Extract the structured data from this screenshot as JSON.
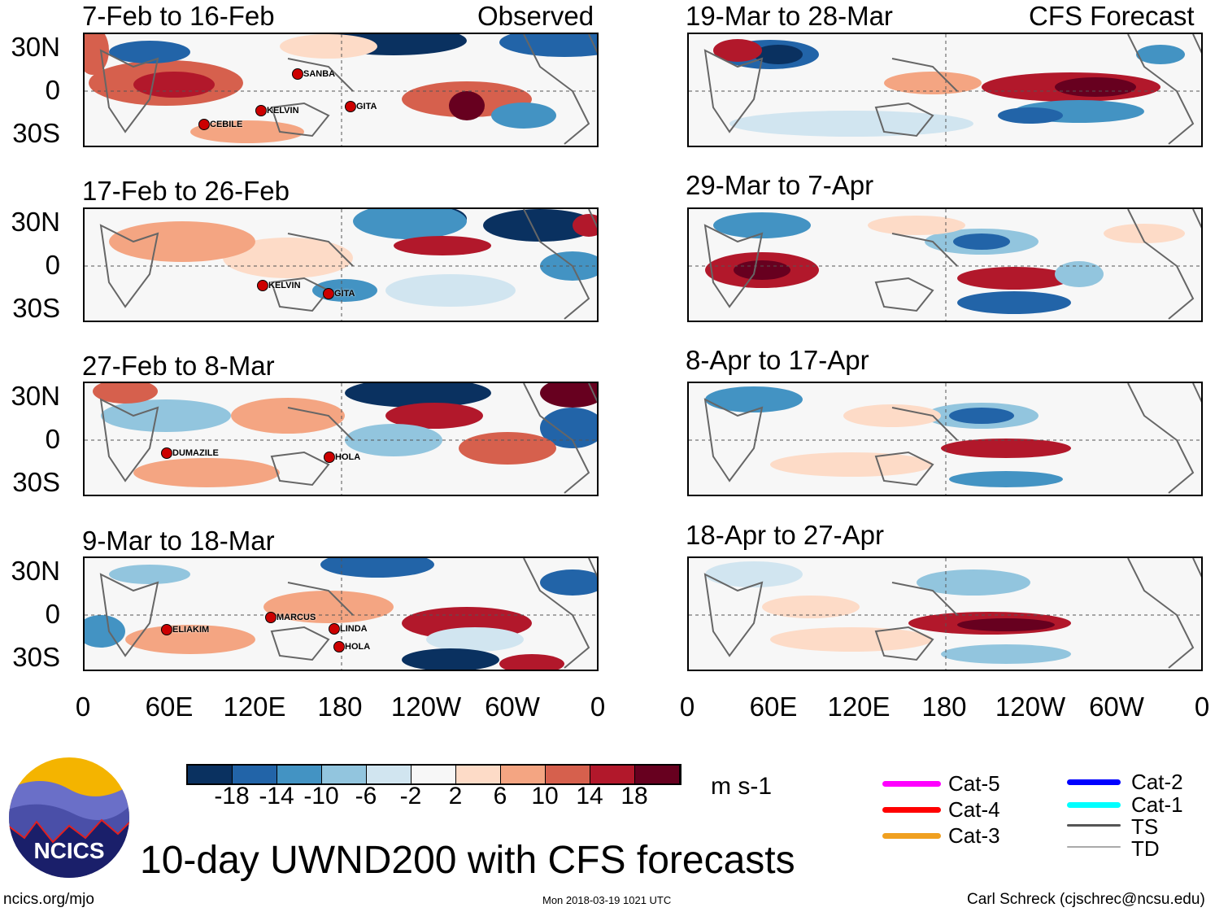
{
  "title": "10-day UWND200 with CFS forecasts",
  "units": "m s-1",
  "site": "ncics.org/mjo",
  "timestamp": "Mon 2018-03-19 1021 UTC",
  "author": "Carl Schreck (cjschrec@ncsu.edu)",
  "logo_text": "NCICS",
  "column_labels": {
    "observed": "Observed",
    "forecast": "CFS Forecast"
  },
  "y_ticks": [
    "30N",
    "0",
    "30S"
  ],
  "x_ticks": [
    "0",
    "60E",
    "120E",
    "180",
    "120W",
    "60W",
    "0"
  ],
  "panels_left": [
    {
      "title": "7-Feb to 16-Feb",
      "storms": [
        "SANBA",
        "KELVIN",
        "CEBILE",
        "GITA"
      ]
    },
    {
      "title": "17-Feb to 26-Feb",
      "storms": [
        "KELVIN",
        "GITA"
      ]
    },
    {
      "title": "27-Feb to 8-Mar",
      "storms": [
        "DUMAZILE",
        "HOLA"
      ]
    },
    {
      "title": "9-Mar to 18-Mar",
      "storms": [
        "ELIAKIM",
        "MARCUS",
        "LINDA",
        "HOLA"
      ]
    }
  ],
  "panels_right": [
    {
      "title": "19-Mar to 28-Mar"
    },
    {
      "title": "29-Mar to 7-Apr"
    },
    {
      "title": "8-Apr to 17-Apr"
    },
    {
      "title": "18-Apr to 27-Apr"
    }
  ],
  "chart_data": {
    "type": "heatmap",
    "title": "10-day UWND200 with CFS forecasts",
    "colorbar": {
      "levels": [
        "-18",
        "-14",
        "-10",
        "-6",
        "-2",
        "2",
        "6",
        "10",
        "14",
        "18"
      ],
      "colors": [
        "#0a3160",
        "#2264a8",
        "#4393c3",
        "#92c5de",
        "#d1e5f0",
        "#f7f7f7",
        "#fddbc7",
        "#f4a582",
        "#d6604d",
        "#b2182b",
        "#67001f"
      ],
      "units": "m s-1"
    },
    "xlim": [
      "0",
      "0"
    ],
    "ylim": [
      "30S",
      "30N"
    ]
  },
  "legend": [
    {
      "label": "Cat-5",
      "color": "#ff00ff"
    },
    {
      "label": "Cat-4",
      "color": "#ff0000"
    },
    {
      "label": "Cat-3",
      "color": "#f0a020"
    },
    {
      "label": "Cat-2",
      "color": "#0000ff"
    },
    {
      "label": "Cat-1",
      "color": "#00ffff"
    },
    {
      "label": "TS",
      "color": "#555555"
    },
    {
      "label": "TD",
      "color": "#aaaaaa"
    }
  ]
}
